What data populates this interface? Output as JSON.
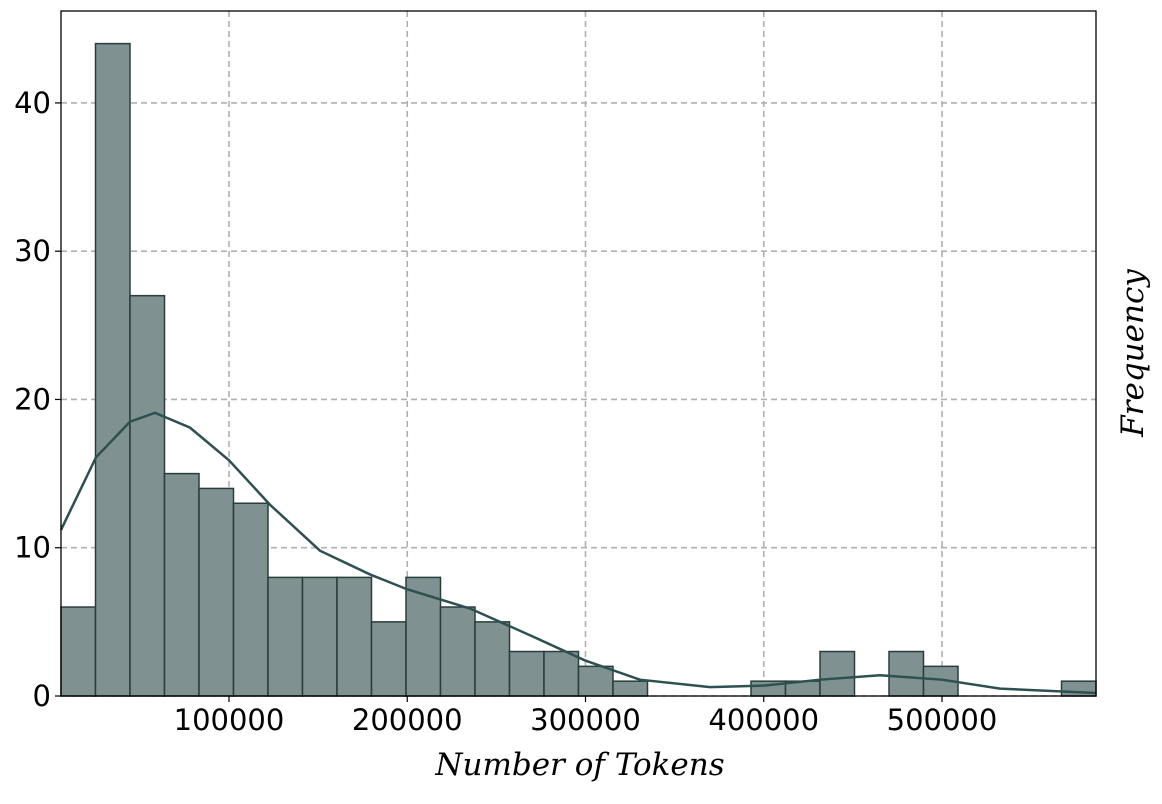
{
  "chart_data": {
    "type": "histogram",
    "xlabel": "Number of Tokens",
    "ylabel": "Frequency",
    "bins": [
      5750,
      25105,
      44460,
      63815,
      83170,
      102525,
      121880,
      141235,
      160590,
      179945,
      199300,
      218655,
      238010,
      257365,
      276720,
      296075,
      315430,
      334785,
      354140,
      373495,
      392850,
      412205,
      431560,
      450915,
      470270,
      489625,
      508980,
      528335,
      547690,
      567045,
      586400
    ],
    "values": [
      6,
      44,
      27,
      15,
      14,
      13,
      8,
      8,
      8,
      5,
      8,
      6,
      5,
      3,
      3,
      2,
      1,
      0,
      0,
      0,
      1,
      1,
      3,
      0,
      3,
      2,
      0,
      0,
      0,
      1
    ],
    "color": "#7f9190",
    "edgecolor": "#2a3d3d",
    "kde": {
      "color": "#2f5050",
      "x": [
        5750,
        25386,
        44460,
        58485,
        78120,
        100000,
        123000,
        151050,
        179100,
        199860,
        235200,
        268850,
        299710,
        330560,
        369830,
        400120,
        431540,
        465200,
        499990,
        532530,
        586390
      ],
      "values": [
        11.2,
        16.1,
        18.5,
        19.1,
        18.1,
        15.9,
        12.9,
        9.8,
        8.2,
        7.2,
        5.9,
        4.1,
        2.4,
        1.1,
        0.6,
        0.7,
        1.1,
        1.4,
        1.1,
        0.5,
        0.2
      ]
    },
    "xlim": [
      5750,
      586400
    ],
    "ylim": [
      0,
      46.2
    ],
    "xticks": [
      100000,
      200000,
      300000,
      400000,
      500000
    ],
    "yticks": [
      0,
      10,
      20,
      30,
      40
    ],
    "grid": true
  }
}
